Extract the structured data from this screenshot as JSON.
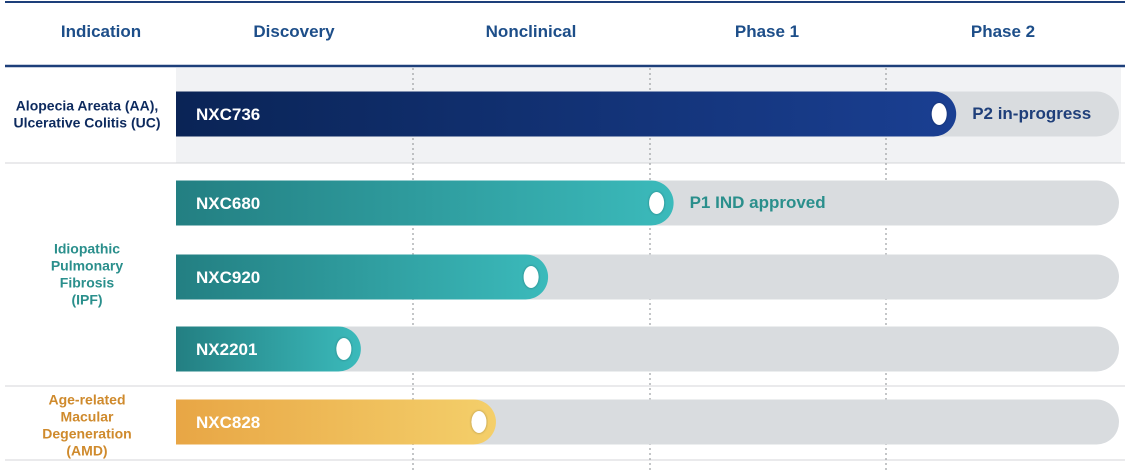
{
  "chart_data": {
    "type": "bar",
    "title": "",
    "xlabel": "",
    "ylabel": "",
    "stage_header": "Indication",
    "stages": [
      "Discovery",
      "Nonclinical",
      "Phase 1",
      "Phase 2"
    ],
    "indications": [
      {
        "label_lines": [
          "Alopecia Areata (AA),",
          "Ulcerative Colitis (UC)"
        ],
        "color": "#0d2a5e"
      },
      {
        "label_lines": [
          "Idiopathic",
          "Pulmonary",
          "Fibrosis",
          "(IPF)"
        ],
        "color": "#2a8f8c"
      },
      {
        "label_lines": [
          "Age-related",
          "Macular",
          "Degeneration",
          "(AMD)"
        ],
        "color": "#cf8a2c"
      }
    ],
    "programs": [
      {
        "name": "NXC736",
        "indication": 0,
        "progress": 3.3,
        "status": "P2 in-progress",
        "color_start": "#0a2456",
        "color_end": "#1a3f92"
      },
      {
        "name": "NXC680",
        "indication": 1,
        "progress": 2.1,
        "status": "P1 IND approved",
        "color_start": "#237f82",
        "color_end": "#3bbabb"
      },
      {
        "name": "NXC920",
        "indication": 1,
        "progress": 1.57,
        "status": "",
        "color_start": "#237f82",
        "color_end": "#3bbabb"
      },
      {
        "name": "NX2201",
        "indication": 1,
        "progress": 0.78,
        "status": "",
        "color_start": "#237f82",
        "color_end": "#3bbabb"
      },
      {
        "name": "NXC828",
        "indication": 2,
        "progress": 1.35,
        "status": "",
        "color_start": "#e8a645",
        "color_end": "#f4cf6a"
      }
    ],
    "colors": {
      "header_text": "#1d4e89",
      "track": "#d9dcdf",
      "divider": "#1d3f7a",
      "status_p2": "#1f3f7a",
      "status_p1": "#2a8f8c"
    }
  }
}
